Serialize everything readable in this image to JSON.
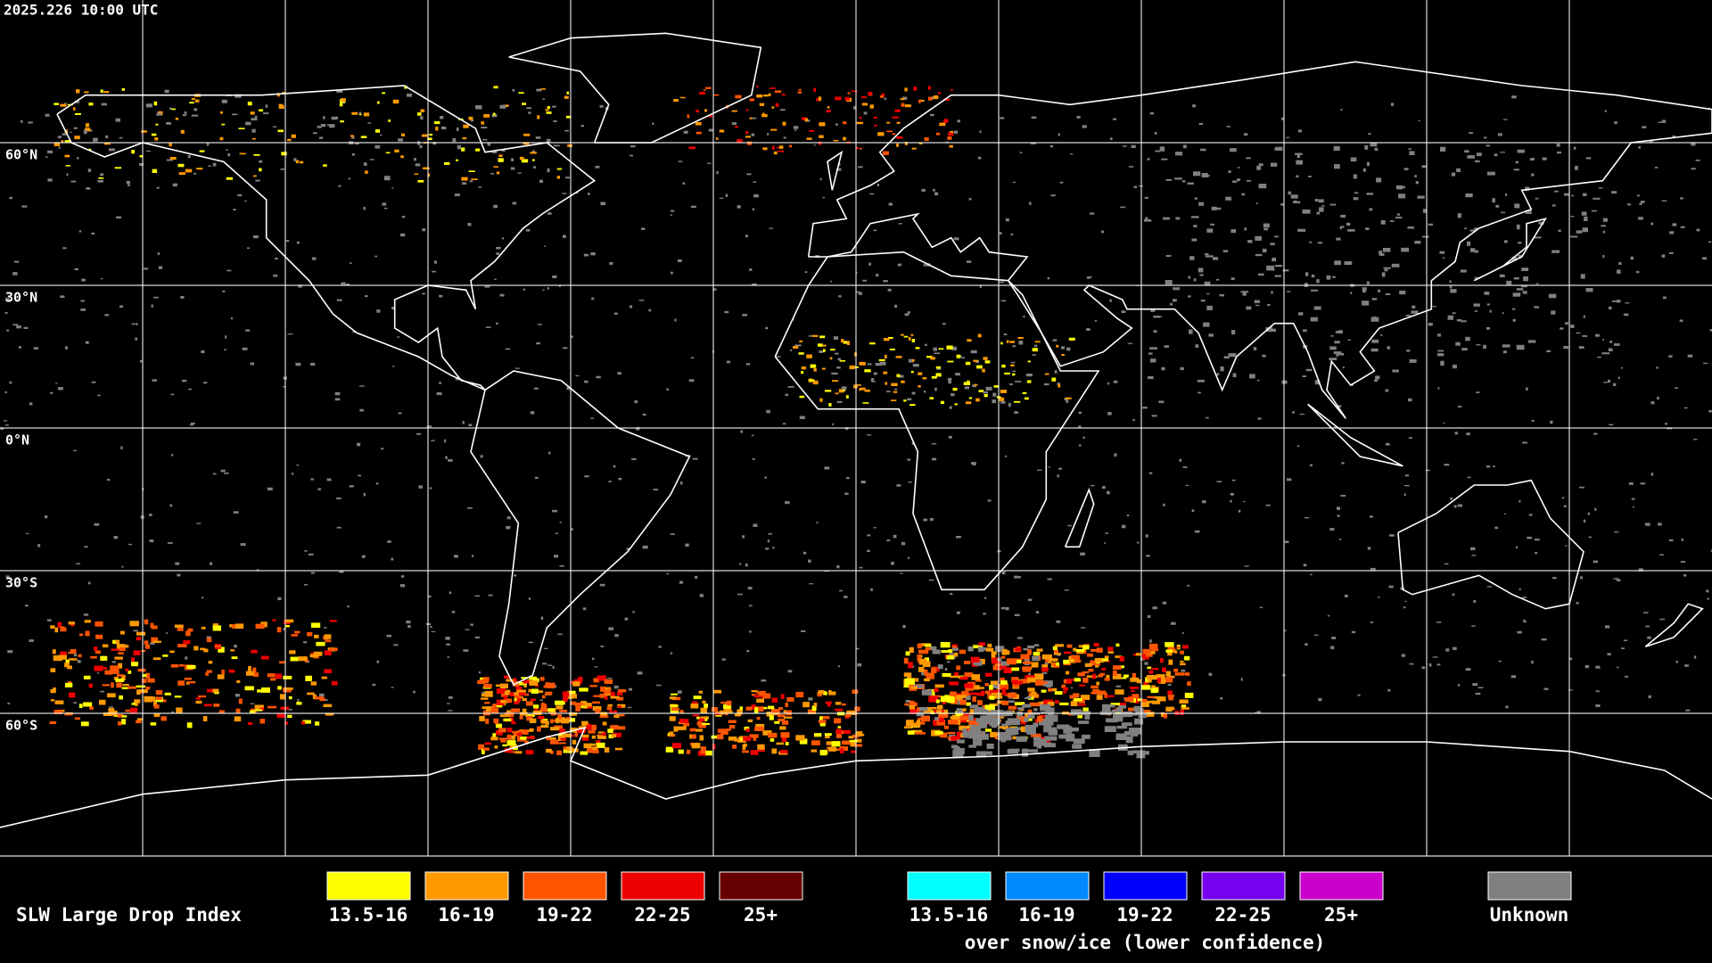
{
  "header": {
    "timestamp": "2025.226 10:00 UTC"
  },
  "map": {
    "latitude_labels": [
      "60°N",
      "30°N",
      "0°N",
      "30°S",
      "60°S"
    ]
  },
  "legend": {
    "title": "SLW Large Drop Index",
    "groups": [
      {
        "items": [
          {
            "label": "13.5-16",
            "color": "#ffff00"
          },
          {
            "label": "16-19",
            "color": "#ff9900"
          },
          {
            "label": "19-22",
            "color": "#ff5500"
          },
          {
            "label": "22-25",
            "color": "#ee0000"
          },
          {
            "label": "25+",
            "color": "#660000"
          }
        ]
      },
      {
        "items": [
          {
            "label": "13.5-16",
            "color": "#00ffff"
          },
          {
            "label": "16-19",
            "color": "#0088ff"
          },
          {
            "label": "19-22",
            "color": "#0000ff"
          },
          {
            "label": "22-25",
            "color": "#7700ee"
          },
          {
            "label": "25+",
            "color": "#cc00cc"
          }
        ],
        "caption": "over snow/ice (lower confidence)"
      },
      {
        "items": [
          {
            "label": "Unknown",
            "color": "#808080"
          }
        ]
      }
    ]
  }
}
